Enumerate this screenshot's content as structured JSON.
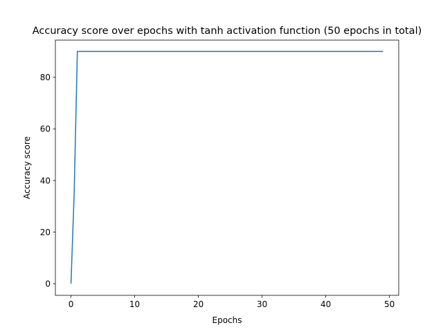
{
  "chart_data": {
    "type": "line",
    "title": "Accuracy score over epochs with tanh activation function (50 epochs in total)",
    "xlabel": "Epochs",
    "ylabel": "Accuracy score",
    "xlim": [
      -2.45,
      51.45
    ],
    "ylim": [
      -4.5,
      94.4
    ],
    "x_ticks": [
      0,
      10,
      20,
      30,
      40,
      50
    ],
    "y_ticks": [
      0,
      20,
      40,
      60,
      80
    ],
    "grid": false,
    "legend": "none",
    "series": [
      {
        "color": "#1f77b4",
        "x": [
          0,
          0.5,
          1,
          2,
          3,
          4,
          5,
          6,
          7,
          8,
          9,
          10,
          11,
          12,
          13,
          14,
          15,
          16,
          17,
          18,
          19,
          20,
          21,
          22,
          23,
          24,
          25,
          26,
          27,
          28,
          29,
          30,
          31,
          32,
          33,
          34,
          35,
          36,
          37,
          38,
          39,
          40,
          41,
          42,
          43,
          44,
          45,
          46,
          47,
          48,
          49
        ],
        "y": [
          0,
          35,
          90,
          90,
          90,
          90,
          90,
          90,
          90,
          90,
          90,
          90,
          90,
          90,
          90,
          90,
          90,
          90,
          90,
          90,
          90,
          90,
          90,
          90,
          90,
          90,
          90,
          90,
          90,
          90,
          90,
          90,
          90,
          90,
          90,
          90,
          90,
          90,
          90,
          90,
          90,
          90,
          90,
          90,
          90,
          90,
          90,
          90,
          90,
          90,
          90
        ]
      }
    ]
  }
}
